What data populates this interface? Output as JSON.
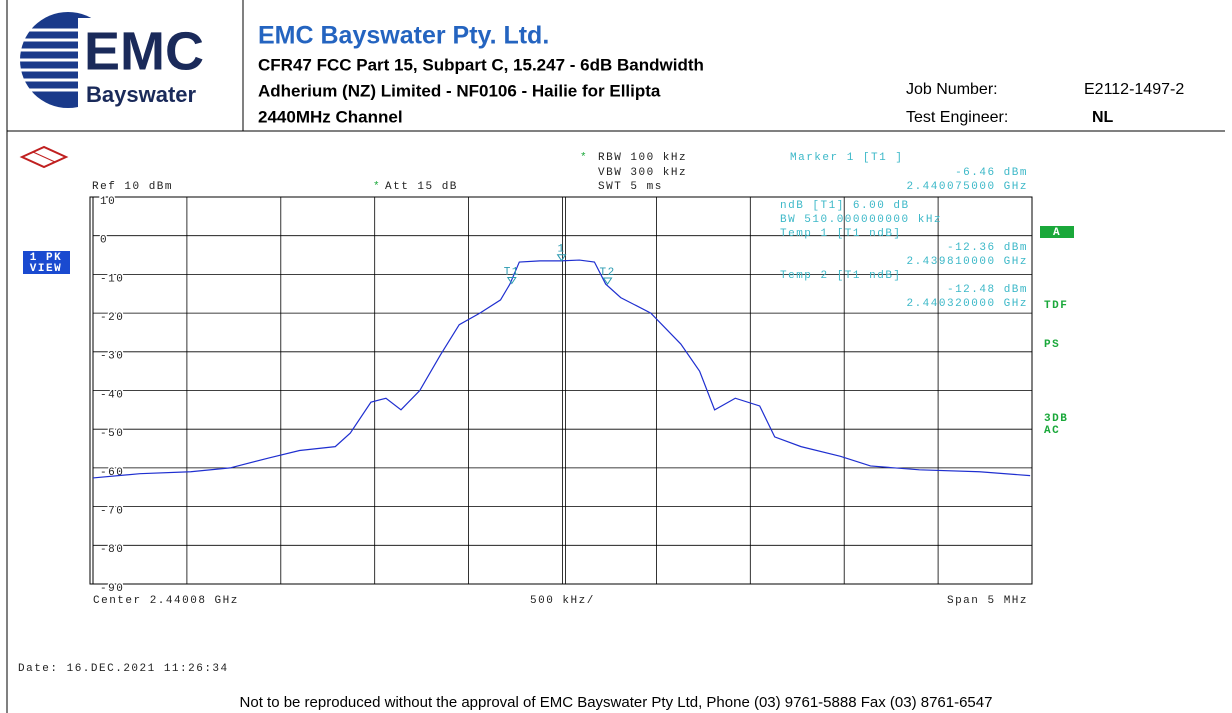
{
  "header": {
    "logo_main": "EMC",
    "logo_sub": "Bayswater",
    "company": "EMC Bayswater Pty. Ltd.",
    "lines": [
      "CFR47 FCC Part 15, Subpart C, 15.247 - 6dB Bandwidth",
      "Adherium (NZ) Limited - NF0106 - Hailie for Ellipta",
      "2440MHz Channel"
    ],
    "job_label": "Job Number:",
    "job_value": "E2112-1497-2",
    "engineer_label": "Test Engineer:",
    "engineer_value": "NL"
  },
  "chart_data": {
    "type": "line",
    "x": [
      2.43758,
      2.43783,
      2.4381,
      2.43831,
      2.43852,
      2.43868,
      2.43887,
      2.43895,
      2.43906,
      2.43914,
      2.43922,
      2.43932,
      2.43943,
      2.43953,
      2.43964,
      2.43975,
      2.4398,
      2.43985,
      2.43996,
      2.44007,
      2.44017,
      2.44025,
      2.44031,
      2.44039,
      2.44055,
      2.44071,
      2.44081,
      2.44089,
      2.441,
      2.44113,
      2.44121,
      2.44135,
      2.44156,
      2.44172,
      2.44198,
      2.4423,
      2.44257
    ],
    "series": [
      {
        "color": "#1f2fd0",
        "values": [
          -62.6,
          -61.5,
          -61,
          -60,
          -57.4,
          -55.5,
          -54.5,
          -51,
          -43,
          -42,
          -45,
          -40,
          -30.8,
          -23,
          -20,
          -16.6,
          -12.5,
          -6.8,
          -6.5,
          -6.5,
          -6.3,
          -6.8,
          -12.5,
          -16,
          -20,
          -28,
          -35,
          -45,
          -42,
          -44,
          -52,
          -54.5,
          -57,
          -59.5,
          -60.5,
          -61,
          -62
        ]
      }
    ],
    "xlim": [
      2.43758,
      2.44258
    ],
    "ylim": [
      -90,
      10
    ],
    "yticks": [
      10,
      0,
      -10,
      -20,
      -30,
      -40,
      -50,
      -60,
      -70,
      -80,
      -90
    ],
    "grid": true,
    "markers": [
      {
        "name": "1",
        "x": 2.440075,
        "value": -6.46
      },
      {
        "name": "T1",
        "x": 2.43981,
        "value": -12.36
      },
      {
        "name": "T2",
        "x": 2.44032,
        "value": -12.48
      }
    ],
    "annotations": [
      "*",
      "RBW 100 kHz",
      "VBW 300 kHz",
      "SWT 5 ms",
      "Ref 10 dBm",
      "*",
      "Att 15 dB",
      "Marker 1 [T1 ]",
      "-6.46 dBm",
      "2.440075000 GHz",
      "ndB [T1] 6.00 dB",
      "BW 510.000000000 kHz",
      "Temp 1 [T1 ndB]",
      "-12.36 dBm",
      "2.439810000 GHz",
      "Temp 2 [T1 ndB]",
      "-12.48 dBm",
      "2.440320000 GHz",
      "Center 2.44008 GHz",
      "500 kHz/",
      "Span 5 MHz",
      "Date: 16.DEC.2021 11:26:34",
      "1 PK",
      "VIEW",
      "A",
      "TDF",
      "PS",
      "3DB",
      "AC"
    ]
  },
  "footer": "Not to be reproduced without the approval of EMC Bayswater Pty Ltd, Phone (03) 9761-5888 Fax (03) 8761-6547"
}
